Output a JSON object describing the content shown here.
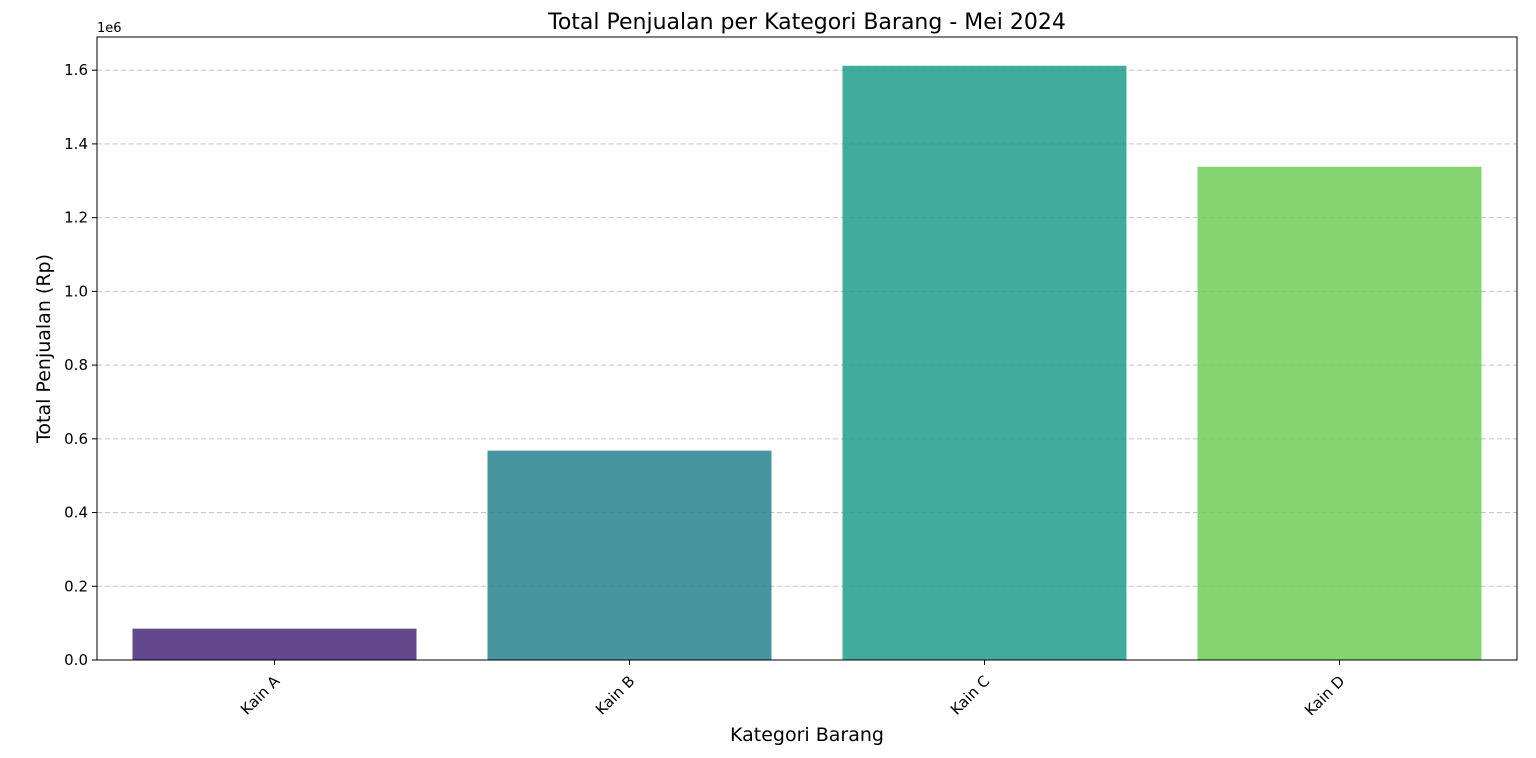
{
  "chart_data": {
    "type": "bar",
    "title": "Total Penjualan per Kategori Barang - Mei 2024",
    "xlabel": "Kategori Barang",
    "ylabel": "Total Penjualan (Rp)",
    "y_offset_label": "1e6",
    "categories": [
      "Kain A",
      "Kain B",
      "Kain C",
      "Kain D"
    ],
    "values": [
      85000,
      568000,
      1612000,
      1338000
    ],
    "colors": [
      "#482878",
      "#26828e",
      "#1f9e89",
      "#6ece58"
    ],
    "bar_opacity": 0.85,
    "ylim": [
      0,
      1690000
    ],
    "yticks": [
      0,
      200000,
      400000,
      600000,
      800000,
      1000000,
      1200000,
      1400000,
      1600000
    ],
    "ytick_labels": [
      "0.0",
      "0.2",
      "0.4",
      "0.6",
      "0.8",
      "1.0",
      "1.2",
      "1.4",
      "1.6"
    ],
    "xtick_rotation": 45,
    "grid": "y-dashed",
    "legend": "none"
  }
}
